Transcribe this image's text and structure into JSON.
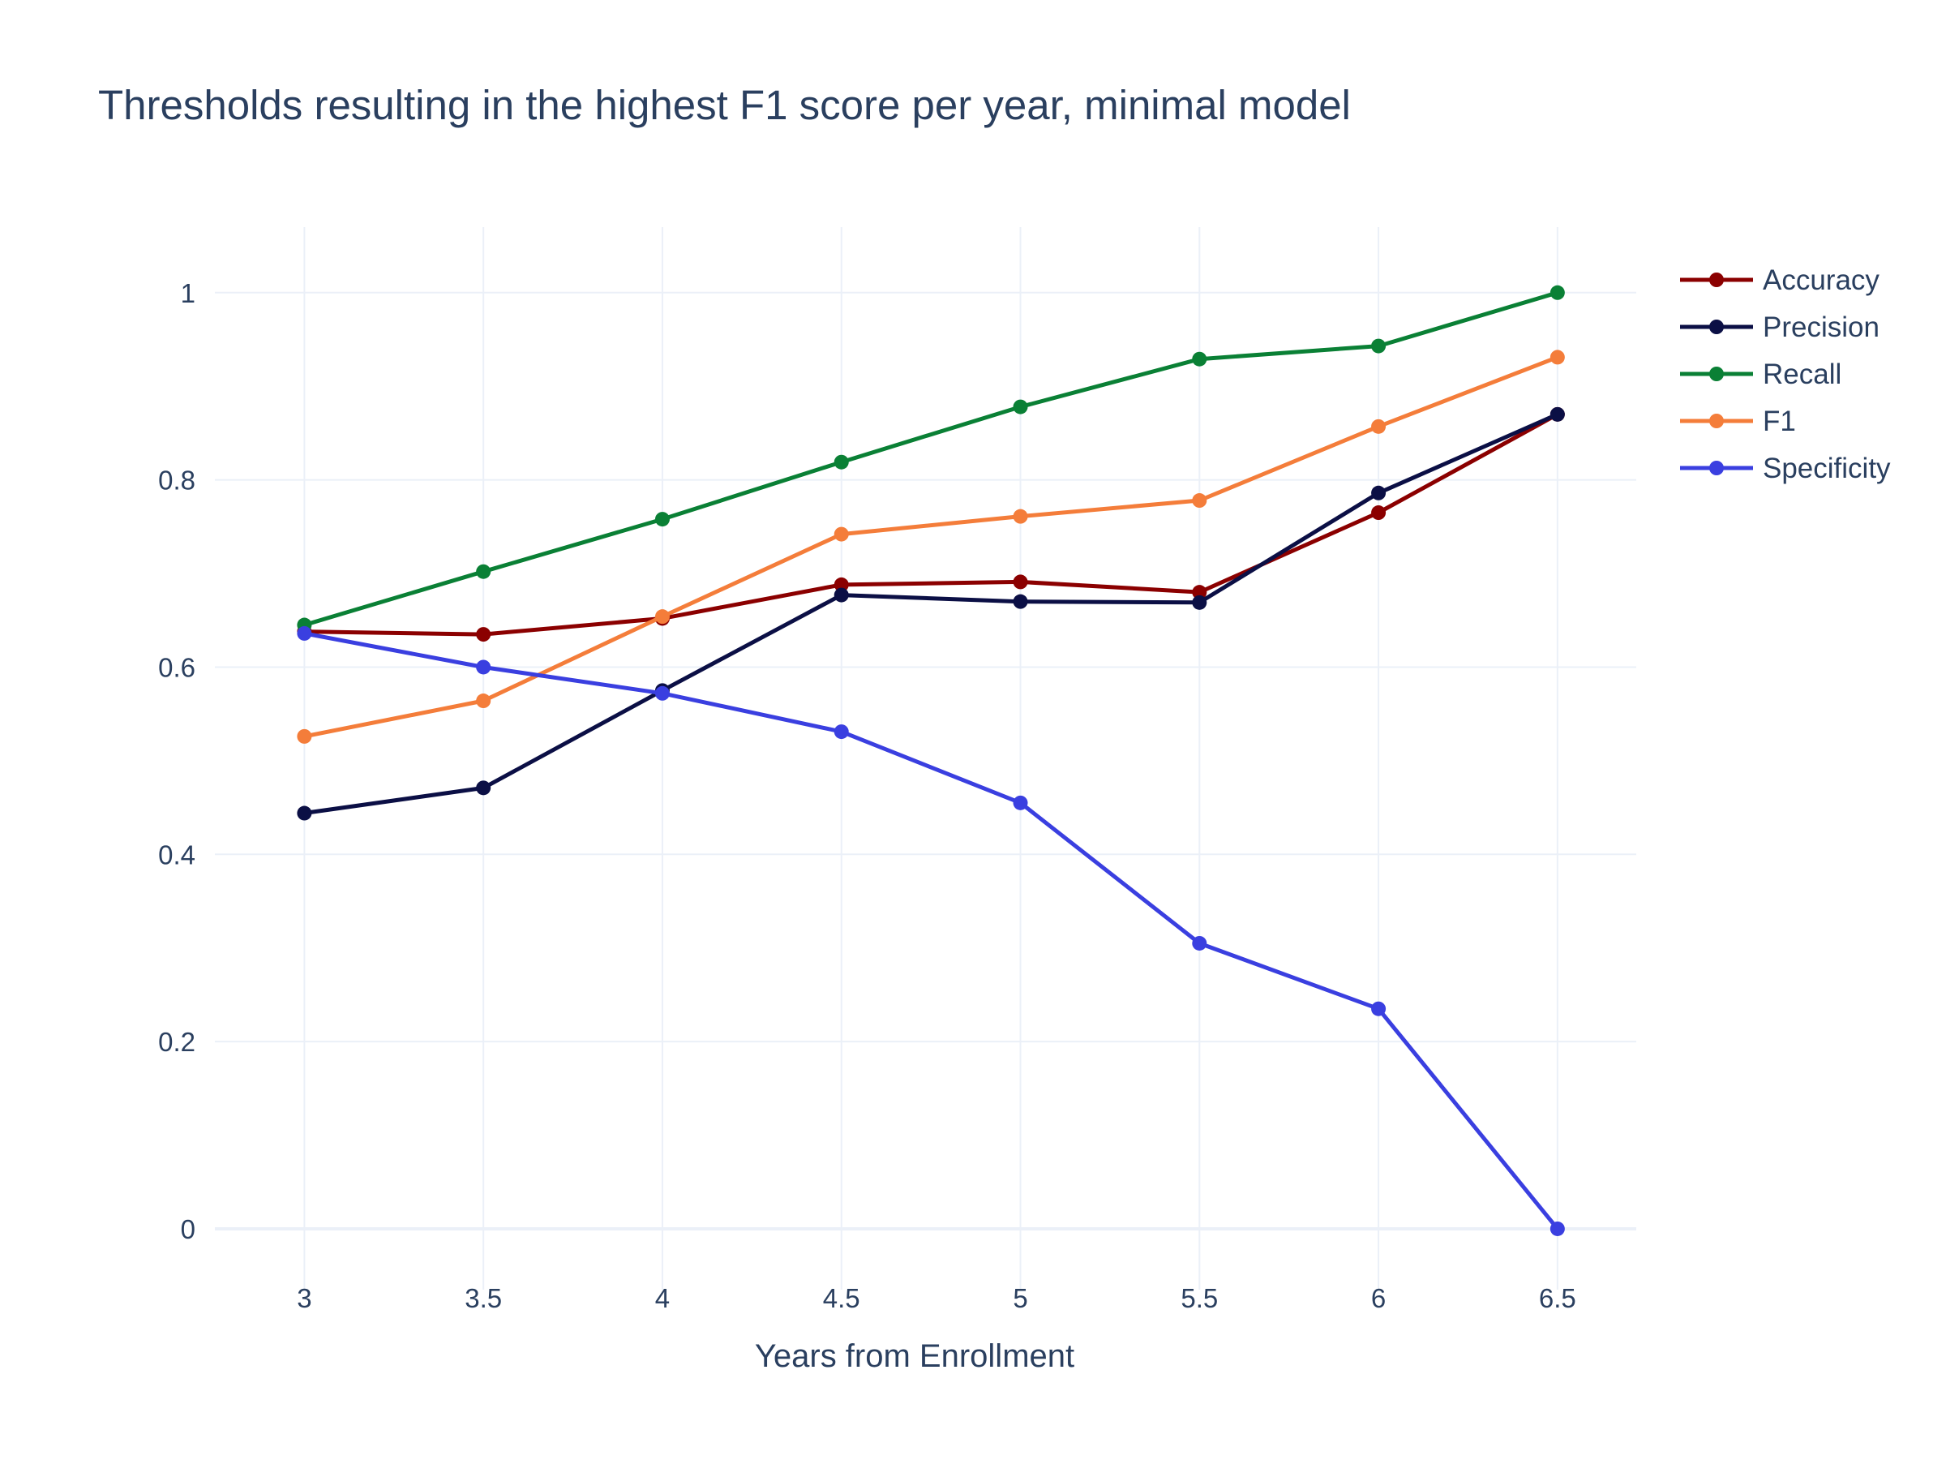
{
  "chart_data": {
    "type": "line",
    "title": "Thresholds resulting in the highest F1 score per year, minimal model",
    "xlabel": "Years from Enrollment",
    "ylabel": "",
    "x": [
      3,
      3.5,
      4,
      4.5,
      5,
      5.5,
      6,
      6.5
    ],
    "x_tick_labels": [
      "3",
      "3.5",
      "4",
      "4.5",
      "5",
      "5.5",
      "6",
      "6.5"
    ],
    "y_ticks": [
      0,
      0.2,
      0.4,
      0.6,
      0.8,
      1
    ],
    "y_tick_labels": [
      "0",
      "0.2",
      "0.4",
      "0.6",
      "0.8",
      "1"
    ],
    "xlim": [
      2.75,
      6.72
    ],
    "ylim": [
      -0.065,
      1.07
    ],
    "grid": true,
    "legend": "top-right",
    "series": [
      {
        "name": "Accuracy",
        "color": "#8b0000",
        "values": [
          0.638,
          0.635,
          0.652,
          0.688,
          0.691,
          0.68,
          0.765,
          0.87
        ]
      },
      {
        "name": "Precision",
        "color": "#0b0f45",
        "values": [
          0.444,
          0.471,
          0.575,
          0.677,
          0.67,
          0.669,
          0.786,
          0.87
        ]
      },
      {
        "name": "Recall",
        "color": "#0a8035",
        "values": [
          0.645,
          0.702,
          0.758,
          0.819,
          0.878,
          0.929,
          0.943,
          1.0
        ]
      },
      {
        "name": "F1",
        "color": "#f47d3a",
        "values": [
          0.526,
          0.564,
          0.654,
          0.742,
          0.761,
          0.778,
          0.857,
          0.931
        ]
      },
      {
        "name": "Specificity",
        "color": "#3a3fe0",
        "values": [
          0.636,
          0.6,
          0.572,
          0.531,
          0.455,
          0.305,
          0.235,
          0.0
        ]
      }
    ]
  }
}
